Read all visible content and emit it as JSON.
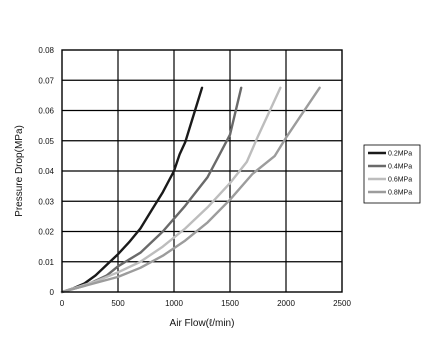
{
  "chart_data": {
    "type": "line",
    "title": "",
    "xlabel": "Air Flow(ℓ/min)",
    "ylabel": "Pressure Drop(MPa)",
    "xlim": [
      0,
      2500
    ],
    "ylim": [
      0,
      0.08
    ],
    "x_ticks": [
      "0",
      "500",
      "1000",
      "1500",
      "2000",
      "2500"
    ],
    "y_ticks": [
      "0",
      "0.01",
      "0.02",
      "0.03",
      "0.04",
      "0.05",
      "0.06",
      "0.07",
      "0.08"
    ],
    "grid": true,
    "legend_position": "right",
    "series": [
      {
        "name": "0.2MPa",
        "color": "#1a1a1a",
        "points": [
          [
            0,
            0
          ],
          [
            100,
            0.0012
          ],
          [
            200,
            0.0028
          ],
          [
            300,
            0.0055
          ],
          [
            400,
            0.009
          ],
          [
            500,
            0.0125
          ],
          [
            600,
            0.0165
          ],
          [
            700,
            0.021
          ],
          [
            800,
            0.027
          ],
          [
            900,
            0.033
          ],
          [
            1000,
            0.04
          ],
          [
            1050,
            0.0455
          ],
          [
            1100,
            0.0495
          ],
          [
            1150,
            0.0555
          ],
          [
            1200,
            0.0615
          ],
          [
            1250,
            0.0675
          ]
        ]
      },
      {
        "name": "0.4MPa",
        "color": "#6a6a6a",
        "points": [
          [
            0,
            0
          ],
          [
            200,
            0.002
          ],
          [
            400,
            0.0055
          ],
          [
            500,
            0.0085
          ],
          [
            700,
            0.013
          ],
          [
            900,
            0.02
          ],
          [
            1100,
            0.0285
          ],
          [
            1300,
            0.038
          ],
          [
            1400,
            0.045
          ],
          [
            1500,
            0.052
          ],
          [
            1600,
            0.0675
          ]
        ]
      },
      {
        "name": "0.6MPa",
        "color": "#bdbdbd",
        "points": [
          [
            0,
            0
          ],
          [
            300,
            0.0035
          ],
          [
            500,
            0.0065
          ],
          [
            700,
            0.01
          ],
          [
            900,
            0.015
          ],
          [
            1100,
            0.021
          ],
          [
            1300,
            0.028
          ],
          [
            1500,
            0.036
          ],
          [
            1650,
            0.043
          ],
          [
            1750,
            0.0515
          ],
          [
            1850,
            0.0595
          ],
          [
            1950,
            0.0675
          ]
        ]
      },
      {
        "name": "0.8MPa",
        "color": "#9c9c9c",
        "points": [
          [
            0,
            0
          ],
          [
            500,
            0.005
          ],
          [
            700,
            0.008
          ],
          [
            900,
            0.012
          ],
          [
            1100,
            0.017
          ],
          [
            1300,
            0.023
          ],
          [
            1500,
            0.0305
          ],
          [
            1700,
            0.039
          ],
          [
            1900,
            0.045
          ],
          [
            2000,
            0.051
          ],
          [
            2100,
            0.0565
          ],
          [
            2200,
            0.062
          ],
          [
            2300,
            0.0675
          ]
        ]
      }
    ]
  }
}
